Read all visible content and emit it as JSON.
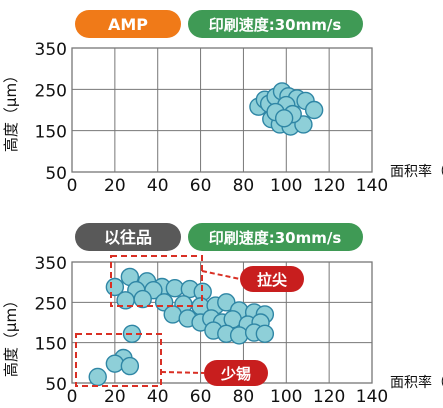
{
  "colors": {
    "amp_badge": "#f07a18",
    "speed_badge": "#3f9a55",
    "old_badge": "#595959",
    "bubble_fill": "#8ecfd8",
    "bubble_stroke": "#2f86a5",
    "grid": "#777777",
    "annotation": "#d93025",
    "callout_bg": "#c81e1e"
  },
  "chart_data": [
    {
      "type": "scatter",
      "badges": [
        "AMP",
        "印刷速度:30mm/s"
      ],
      "ylabel": "高度（μm）",
      "xlabel": "面积率（%）",
      "xlim": [
        0,
        140
      ],
      "ylim": [
        50,
        350
      ],
      "xticks": [
        "0",
        "20",
        "40",
        "60",
        "80",
        "100",
        "120",
        "140"
      ],
      "yticks": [
        "50",
        "150",
        "250",
        "350"
      ],
      "grid": true,
      "points": [
        {
          "x": 87,
          "y": 208
        },
        {
          "x": 90,
          "y": 225
        },
        {
          "x": 92,
          "y": 215
        },
        {
          "x": 95,
          "y": 232
        },
        {
          "x": 98,
          "y": 245
        },
        {
          "x": 101,
          "y": 233
        },
        {
          "x": 105,
          "y": 228
        },
        {
          "x": 109,
          "y": 222
        },
        {
          "x": 100,
          "y": 212
        },
        {
          "x": 113,
          "y": 200
        },
        {
          "x": 93,
          "y": 178
        },
        {
          "x": 97,
          "y": 165
        },
        {
          "x": 102,
          "y": 160
        },
        {
          "x": 108,
          "y": 165
        },
        {
          "x": 95,
          "y": 195
        },
        {
          "x": 103,
          "y": 190
        },
        {
          "x": 99,
          "y": 180
        }
      ]
    },
    {
      "type": "scatter",
      "badges": [
        "以往品",
        "印刷速度:30mm/s"
      ],
      "ylabel": "高度（μm）",
      "xlabel": "面积率（%）",
      "xlim": [
        0,
        140
      ],
      "ylim": [
        50,
        350
      ],
      "xticks": [
        "0",
        "20",
        "40",
        "60",
        "80",
        "100",
        "120",
        "140"
      ],
      "yticks": [
        "50",
        "150",
        "250",
        "350"
      ],
      "grid": true,
      "annotations": [
        "拉尖",
        "少锡"
      ],
      "points": [
        {
          "x": 20,
          "y": 288
        },
        {
          "x": 27,
          "y": 313
        },
        {
          "x": 35,
          "y": 302
        },
        {
          "x": 42,
          "y": 288
        },
        {
          "x": 30,
          "y": 280
        },
        {
          "x": 38,
          "y": 280
        },
        {
          "x": 48,
          "y": 285
        },
        {
          "x": 55,
          "y": 283
        },
        {
          "x": 61,
          "y": 276
        },
        {
          "x": 25,
          "y": 255
        },
        {
          "x": 33,
          "y": 258
        },
        {
          "x": 43,
          "y": 250
        },
        {
          "x": 52,
          "y": 245
        },
        {
          "x": 60,
          "y": 240
        },
        {
          "x": 67,
          "y": 242
        },
        {
          "x": 72,
          "y": 250
        },
        {
          "x": 78,
          "y": 230
        },
        {
          "x": 85,
          "y": 225
        },
        {
          "x": 90,
          "y": 220
        },
        {
          "x": 47,
          "y": 220
        },
        {
          "x": 54,
          "y": 210
        },
        {
          "x": 60,
          "y": 200
        },
        {
          "x": 65,
          "y": 210
        },
        {
          "x": 70,
          "y": 200
        },
        {
          "x": 75,
          "y": 208
        },
        {
          "x": 82,
          "y": 195
        },
        {
          "x": 88,
          "y": 200
        },
        {
          "x": 66,
          "y": 180
        },
        {
          "x": 72,
          "y": 172
        },
        {
          "x": 78,
          "y": 168
        },
        {
          "x": 85,
          "y": 175
        },
        {
          "x": 90,
          "y": 172
        },
        {
          "x": 28,
          "y": 172
        },
        {
          "x": 24,
          "y": 112
        },
        {
          "x": 20,
          "y": 98
        },
        {
          "x": 27,
          "y": 92
        },
        {
          "x": 12,
          "y": 65
        }
      ]
    }
  ]
}
